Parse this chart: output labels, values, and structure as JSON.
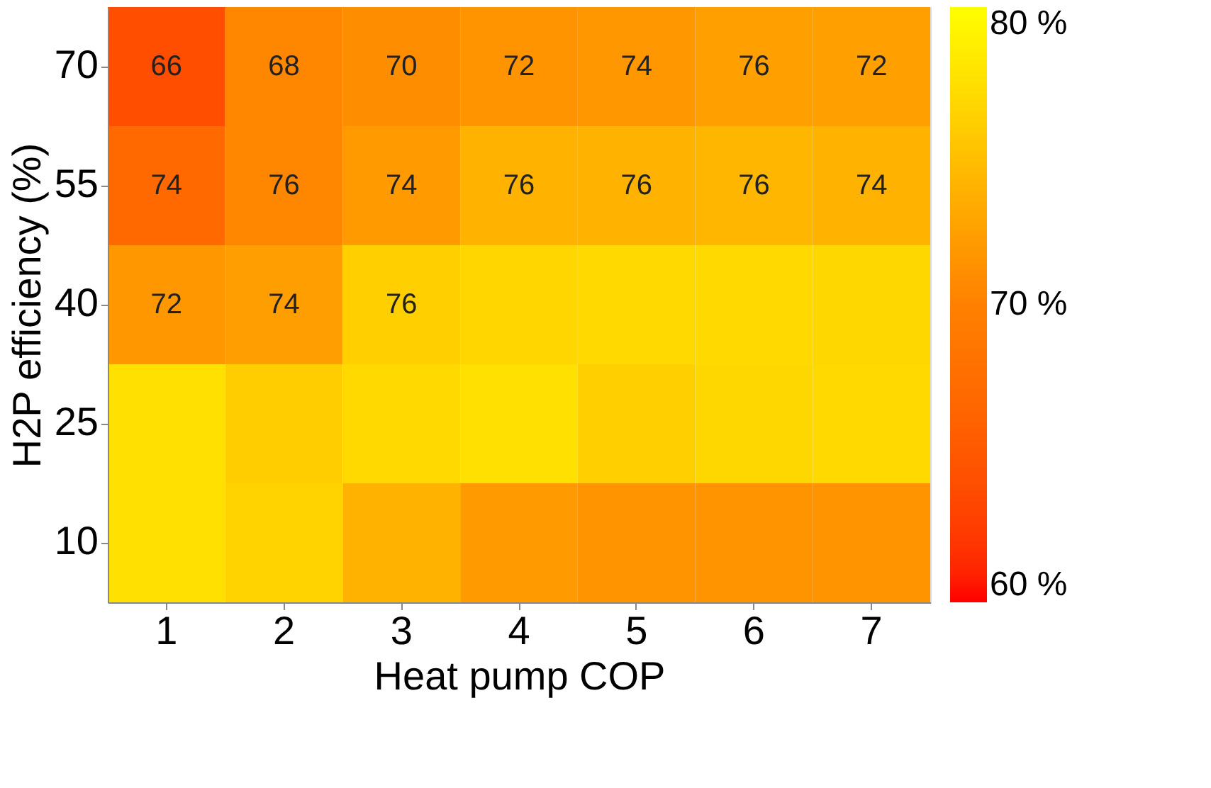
{
  "chart_data": {
    "type": "heatmap",
    "xlabel": "Heat pump COP",
    "ylabel": "H2P efficiency (%)",
    "categories": [
      "1",
      "2",
      "3",
      "4",
      "5",
      "6",
      "7"
    ],
    "y_categories": [
      "70",
      "55",
      "40",
      "25",
      "10"
    ],
    "cells": [
      [
        64,
        70.5,
        71,
        71.5,
        71.8,
        72.5,
        72.5
      ],
      [
        67,
        70.5,
        72,
        74,
        74,
        74.2,
        74
      ],
      [
        71.8,
        72.3,
        76.2,
        76.7,
        77,
        77,
        76.8
      ],
      [
        77.5,
        76,
        77,
        77.5,
        76.2,
        76.8,
        77
      ],
      [
        77.5,
        76.5,
        74,
        72,
        71.5,
        71.5,
        71.5
      ]
    ],
    "clim": [
      60,
      80
    ],
    "cticks": [
      {
        "value": 60,
        "label": "60 %"
      },
      {
        "value": 70,
        "label": "70 %"
      },
      {
        "value": 80,
        "label": "80 %"
      }
    ],
    "annotations": [
      "66",
      "68",
      "70",
      "72",
      "74",
      "76",
      "72",
      "74",
      "76",
      "74",
      "76",
      "76",
      "76",
      "74",
      "72",
      "74",
      "76"
    ]
  }
}
